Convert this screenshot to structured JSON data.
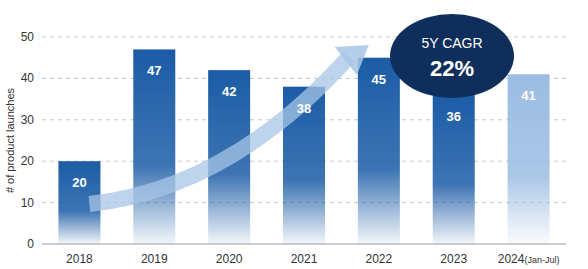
{
  "chart_data": {
    "type": "bar",
    "y_label": "# of product launches",
    "categories": [
      "2018",
      "2019",
      "2020",
      "2021",
      "2022",
      "2023",
      "2024(Jan-Jul)"
    ],
    "values": [
      20,
      47,
      42,
      38,
      45,
      36,
      41
    ],
    "colors": [
      "#1b5ca6",
      "#1b5ca6",
      "#1b5ca6",
      "#1b5ca6",
      "#1b5ca6",
      "#1b5ca6",
      "#9bbde2"
    ],
    "ylim": [
      0,
      50
    ],
    "yticks": [
      0,
      10,
      20,
      30,
      40,
      50
    ],
    "grid": true,
    "data_labels": true,
    "annotations": [
      "5Y CAGR",
      "22%"
    ]
  }
}
